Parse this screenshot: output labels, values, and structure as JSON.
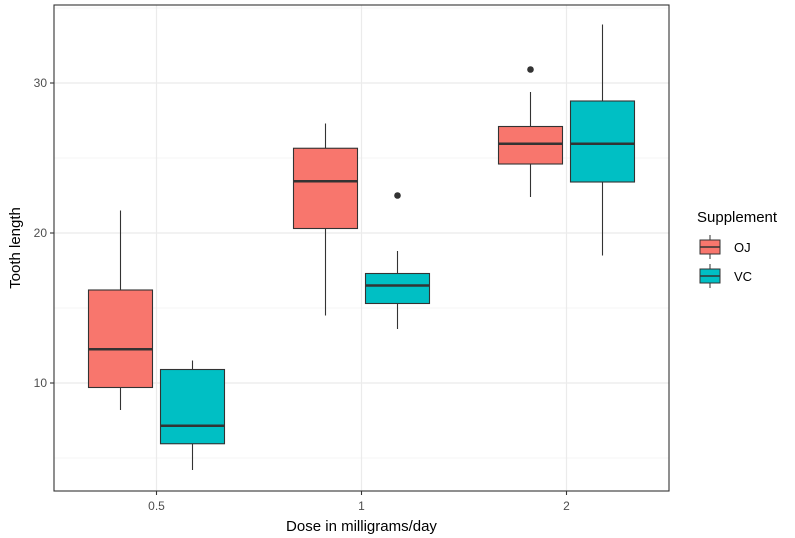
{
  "chart_data": {
    "type": "boxplot",
    "title": "",
    "xlabel": "Dose in milligrams/day",
    "ylabel": "Tooth length",
    "categories": [
      "0.5",
      "1",
      "2"
    ],
    "ylim": [
      2.8,
      35.2
    ],
    "yticks": [
      10,
      20,
      30
    ],
    "grid": true,
    "legend": {
      "title": "Supplement",
      "position": "right"
    },
    "series": [
      {
        "name": "OJ",
        "color": "#F8766D",
        "boxes": [
          {
            "category": "0.5",
            "min": 8.2,
            "q1": 9.7,
            "median": 12.25,
            "q3": 16.2,
            "max": 21.5,
            "outliers": []
          },
          {
            "category": "1",
            "min": 14.5,
            "q1": 20.3,
            "median": 23.45,
            "q3": 25.65,
            "max": 27.3,
            "outliers": []
          },
          {
            "category": "2",
            "min": 22.4,
            "q1": 24.6,
            "median": 25.95,
            "q3": 27.1,
            "max": 29.4,
            "outliers": [
              30.9
            ]
          }
        ]
      },
      {
        "name": "VC",
        "color": "#00BFC4",
        "boxes": [
          {
            "category": "0.5",
            "min": 4.2,
            "q1": 5.95,
            "median": 7.15,
            "q3": 10.9,
            "max": 11.5,
            "outliers": []
          },
          {
            "category": "1",
            "min": 13.6,
            "q1": 15.3,
            "median": 16.5,
            "q3": 17.3,
            "max": 18.8,
            "outliers": [
              22.5
            ]
          },
          {
            "category": "2",
            "min": 18.5,
            "q1": 23.4,
            "median": 25.95,
            "q3": 28.8,
            "max": 33.9,
            "outliers": []
          }
        ]
      }
    ]
  }
}
